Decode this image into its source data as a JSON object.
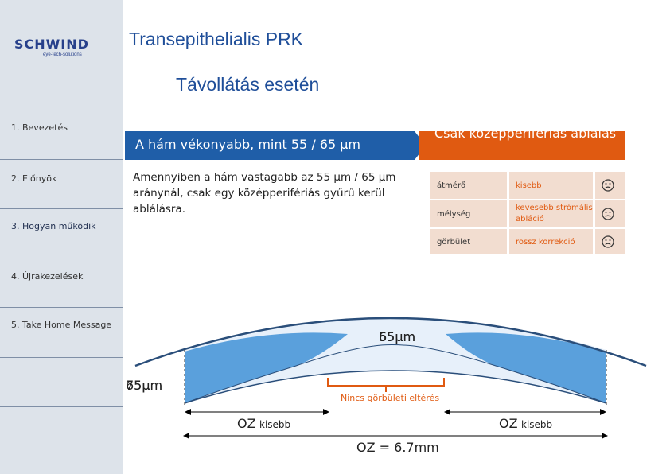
{
  "brand": {
    "name": "SCHWIND",
    "tagline": "eye-tech-solutions"
  },
  "sidebar": {
    "items": [
      {
        "label": "1. Bevezetés"
      },
      {
        "label": "2. Előnyök"
      },
      {
        "label": "3. Hogyan működik"
      },
      {
        "label": "4. Újrakezelések"
      },
      {
        "label": "5. Take Home Message"
      }
    ]
  },
  "slide": {
    "title": "Transepithelialis PRK",
    "subtitle": "Távollátás esetén",
    "banner": "A hám vékonyabb, mint 55 / 65 µm",
    "orange_banner": "Csak középperifériás ablálás",
    "body": "Amennyiben a hám vastagabb  az 55 µm / 65 µm aránynál,  csak egy középperifériás gyűrű kerül ablálásra."
  },
  "table": {
    "rows": [
      {
        "param": "átmérő",
        "effect": "kisebb",
        "icon": "sad-face-icon"
      },
      {
        "param": "mélység",
        "effect": "kevesebb strómális abláció",
        "icon": "sad-face-icon"
      },
      {
        "param": "görbület",
        "effect": "rossz korrekció",
        "icon": "sad-face-icon"
      }
    ]
  },
  "diagram": {
    "center_value_a": "55µm",
    "center_value_b": "65µm",
    "edge_value_a": "65µm",
    "edge_value_b": "75µm",
    "center_note": "Nincs görbületi eltérés",
    "oz_left": "OZ",
    "oz_left_note": "kisebb",
    "oz_right": "OZ",
    "oz_right_note": "kisebb",
    "oz_total": "OZ = 6.7mm"
  },
  "colors": {
    "accent": "#e05a11",
    "title": "#1f4e99",
    "banner": "#1f5ea8",
    "cornea": "#5aa0dc",
    "sidebar": "#dde3ea"
  }
}
